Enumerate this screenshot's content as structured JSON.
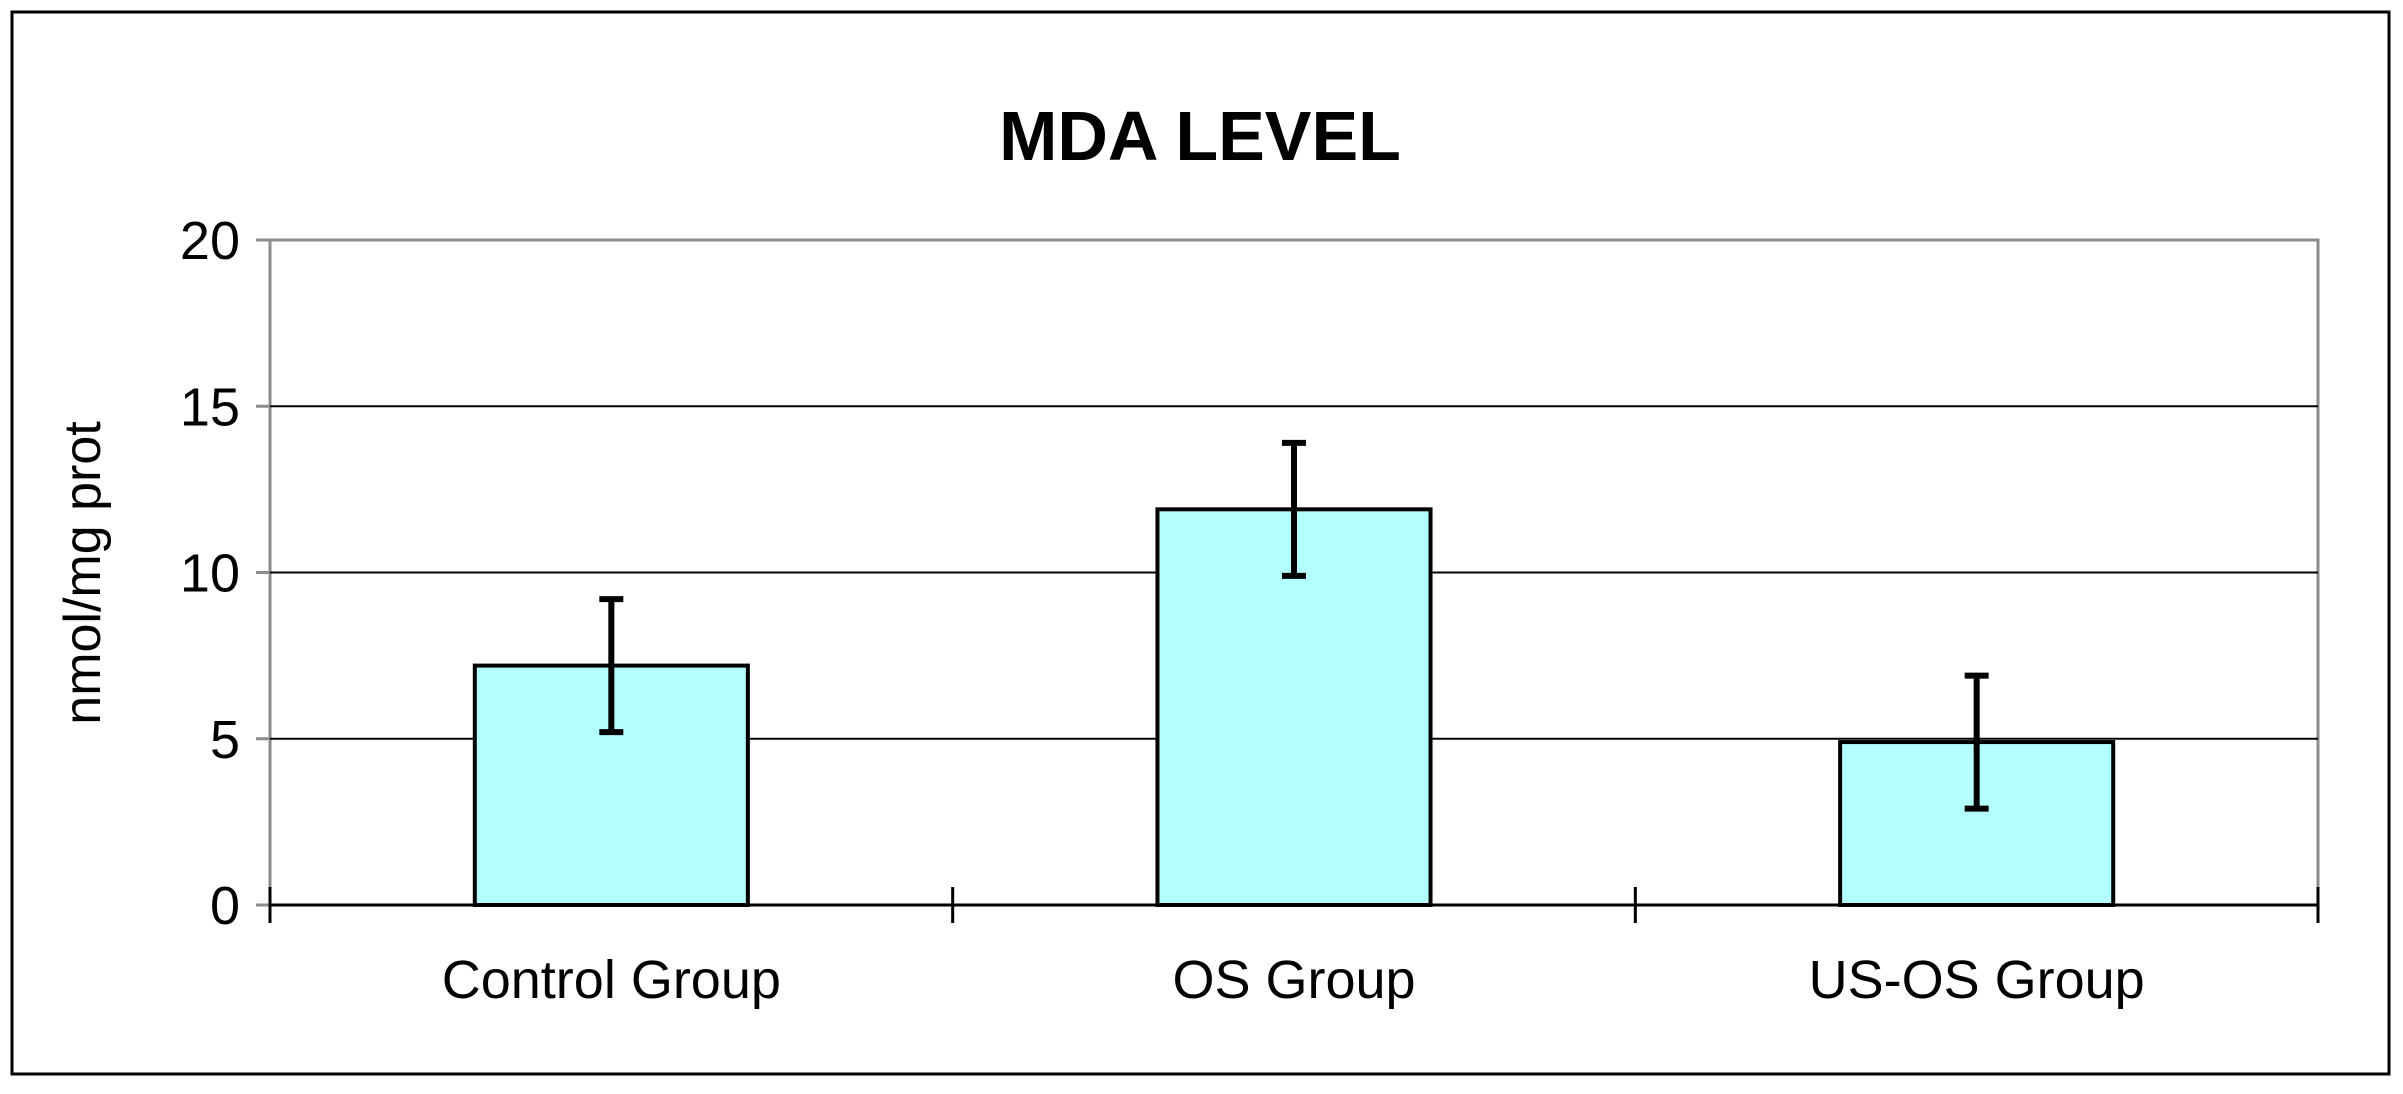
{
  "chart_data": {
    "type": "bar",
    "title": "MDA LEVEL",
    "xlabel": "",
    "ylabel": "nmol/mg prot",
    "categories": [
      "Control Group",
      "OS Group",
      "US-OS Group"
    ],
    "values": [
      7.2,
      11.9,
      4.9
    ],
    "error": [
      2.0,
      2.0,
      2.0
    ],
    "ylim": [
      0,
      20
    ],
    "yticks": [
      0,
      5,
      10,
      15,
      20
    ],
    "grid": true,
    "legend": "none",
    "colors": {
      "bar_fill": "#B3FFFF",
      "bar_stroke": "#000000",
      "plot_area_border": "#8C8C8C",
      "gridline": "#000000",
      "error_bar": "#000000"
    }
  }
}
